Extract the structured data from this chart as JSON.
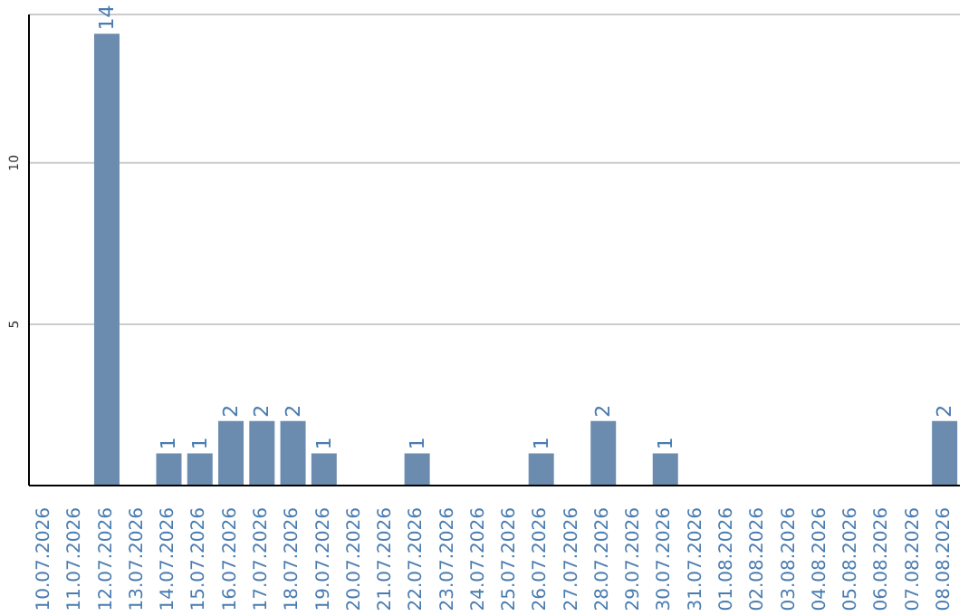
{
  "chart_data": {
    "type": "bar",
    "categories": [
      "10.07.2026",
      "11.07.2026",
      "12.07.2026",
      "13.07.2026",
      "14.07.2026",
      "15.07.2026",
      "16.07.2026",
      "17.07.2026",
      "18.07.2026",
      "19.07.2026",
      "20.07.2026",
      "21.07.2026",
      "22.07.2026",
      "23.07.2026",
      "24.07.2026",
      "25.07.2026",
      "26.07.2026",
      "27.07.2026",
      "28.07.2026",
      "29.07.2026",
      "30.07.2026",
      "31.07.2026",
      "01.08.2026",
      "02.08.2026",
      "03.08.2026",
      "04.08.2026",
      "05.08.2026",
      "06.08.2026",
      "07.08.2026",
      "08.08.2026"
    ],
    "values": [
      0,
      0,
      14,
      0,
      1,
      1,
      2,
      2,
      2,
      1,
      0,
      0,
      1,
      0,
      0,
      0,
      1,
      0,
      2,
      0,
      1,
      0,
      0,
      0,
      0,
      0,
      0,
      0,
      0,
      2
    ],
    "value_labels": [
      null,
      null,
      "14",
      null,
      "1",
      "1",
      "2",
      "2",
      "2",
      "1",
      null,
      null,
      "1",
      null,
      null,
      null,
      "1",
      null,
      "2",
      null,
      "1",
      null,
      null,
      null,
      null,
      null,
      null,
      null,
      null,
      "2"
    ],
    "color": "#6b8cae",
    "ylim": [
      0,
      14.6
    ],
    "yticks": [
      5,
      10
    ],
    "grid": "y"
  }
}
